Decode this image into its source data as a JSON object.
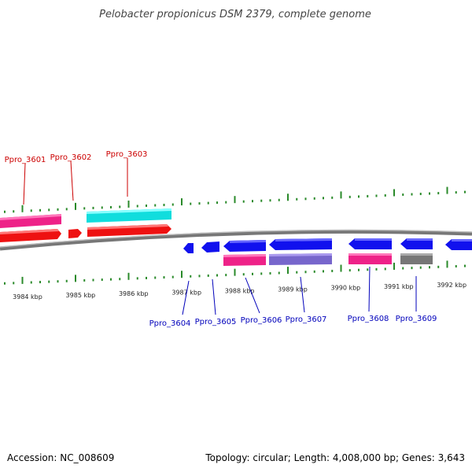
{
  "title": "Pelobacter propionicus DSM 2379, complete genome",
  "footer": {
    "accession": "Accession: NC_008609",
    "summary": "Topology: circular; Length: 4,008,000 bp; Genes: 3,643"
  },
  "colors": {
    "label_forward": "#cc0000",
    "label_reverse": "#0000bb",
    "tick": "#2a8a2a",
    "backbone": "#8a8a8a",
    "pink": "#ee2288",
    "red": "#ee1111",
    "cyan": "#11dddd",
    "blue": "#1111ee",
    "purple": "#7766cc",
    "grey": "#777777"
  },
  "scale_labels": [
    "3984 kbp",
    "3985 kbp",
    "3986 kbp",
    "3987 kbp",
    "3988 kbp",
    "3989 kbp",
    "3990 kbp",
    "3991 kbp",
    "3992 kbp"
  ],
  "genes_forward": [
    {
      "id": "Ppro_3601"
    },
    {
      "id": "Ppro_3602"
    },
    {
      "id": "Ppro_3603"
    }
  ],
  "genes_reverse": [
    {
      "id": "Ppro_3604"
    },
    {
      "id": "Ppro_3605"
    },
    {
      "id": "Ppro_3606"
    },
    {
      "id": "Ppro_3607"
    },
    {
      "id": "Ppro_3608"
    },
    {
      "id": "Ppro_3609"
    }
  ]
}
